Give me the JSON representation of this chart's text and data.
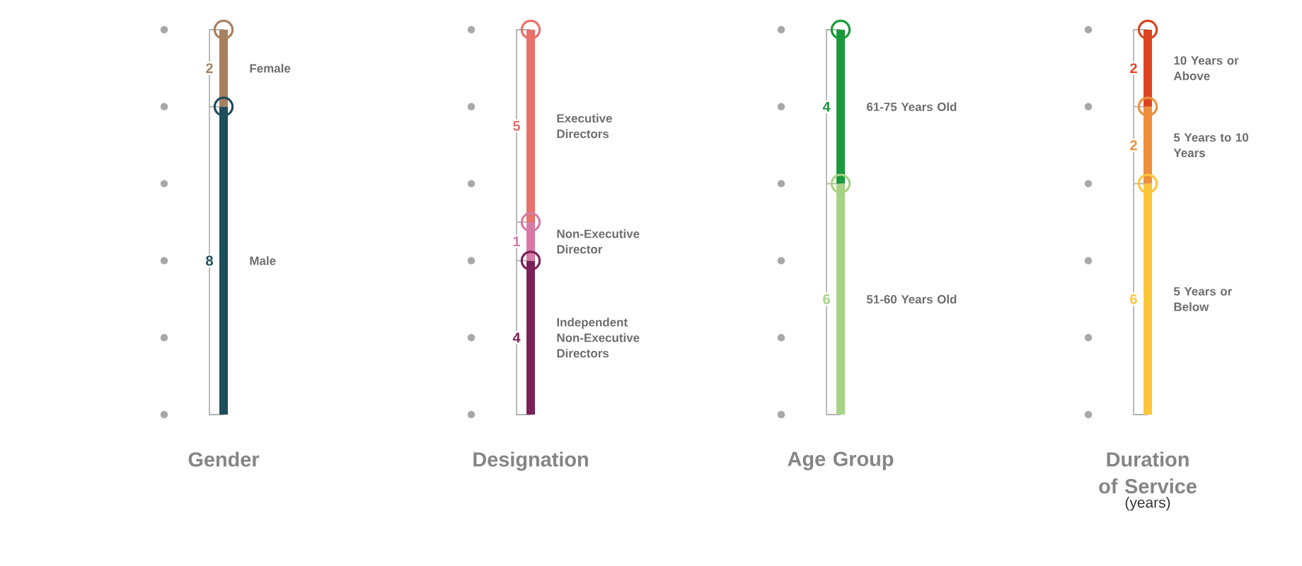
{
  "chart_data": [
    {
      "type": "bar",
      "title": "Gender",
      "categories": [
        null
      ],
      "stacked": true,
      "data_labels": true,
      "series": [
        {
          "name": "Male",
          "color": "#1e4d5e",
          "values": [
            8
          ]
        },
        {
          "name": "Female",
          "color": "#a8805f",
          "values": [
            2
          ]
        }
      ]
    },
    {
      "type": "bar",
      "title": "Designation",
      "categories": [
        null
      ],
      "stacked": true,
      "data_labels": true,
      "series": [
        {
          "name": "Independent Non-Executive Directors",
          "color": "#7a2058",
          "values": [
            4
          ]
        },
        {
          "name": "Non-Executive Director",
          "color": "#d87aa4",
          "values": [
            1
          ]
        },
        {
          "name": "Executive Directors",
          "color": "#e8716a",
          "values": [
            5
          ]
        }
      ]
    },
    {
      "type": "bar",
      "title": "Age Group",
      "categories": [
        null
      ],
      "stacked": true,
      "data_labels": true,
      "series": [
        {
          "name": "51-60 Years Old",
          "color": "#a6d484",
          "values": [
            6
          ]
        },
        {
          "name": "61-75 Years Old",
          "color": "#1a9a3a",
          "values": [
            4
          ]
        }
      ]
    },
    {
      "type": "bar",
      "title": "Duration of Service",
      "subtitle": "(years)",
      "categories": [
        null
      ],
      "stacked": true,
      "data_labels": true,
      "series": [
        {
          "name": "5 Years or Below",
          "color": "#fdc63a",
          "values": [
            6
          ]
        },
        {
          "name": "5 Years to 10 Years",
          "color": "#f08f3a",
          "values": [
            2
          ]
        },
        {
          "name": "10 Years or Above",
          "color": "#dc4420",
          "values": [
            2
          ]
        }
      ]
    }
  ]
}
